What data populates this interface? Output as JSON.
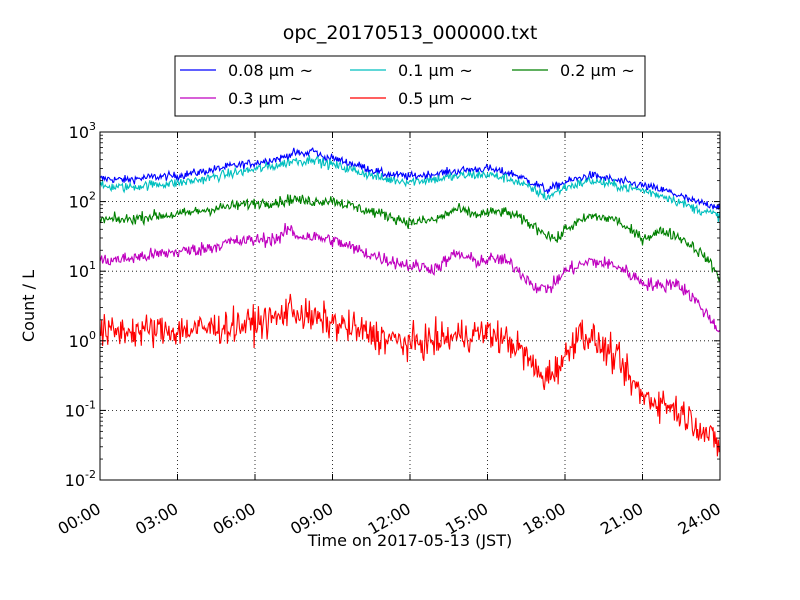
{
  "chart_data": {
    "type": "line",
    "title": "opc_20170513_000000.txt",
    "xlabel": "Time on 2017-05-13 (JST)",
    "ylabel": "Count / L",
    "x_unit": "hours",
    "xlim": [
      0,
      24
    ],
    "ylim": [
      0.01,
      1000
    ],
    "yscale": "log",
    "grid": true,
    "legend_position": "top",
    "x_ticks": [
      {
        "value": 0,
        "label": "00:00"
      },
      {
        "value": 3,
        "label": "03:00"
      },
      {
        "value": 6,
        "label": "06:00"
      },
      {
        "value": 9,
        "label": "09:00"
      },
      {
        "value": 12,
        "label": "12:00"
      },
      {
        "value": 15,
        "label": "15:00"
      },
      {
        "value": 18,
        "label": "18:00"
      },
      {
        "value": 21,
        "label": "21:00"
      },
      {
        "value": 24,
        "label": "24:00"
      }
    ],
    "y_ticks": [
      {
        "value": 0.01,
        "base": "10",
        "exp": "-2"
      },
      {
        "value": 0.1,
        "base": "10",
        "exp": "-1"
      },
      {
        "value": 1,
        "base": "10",
        "exp": "0"
      },
      {
        "value": 10,
        "base": "10",
        "exp": "1"
      },
      {
        "value": 100,
        "base": "10",
        "exp": "2"
      },
      {
        "value": 1000,
        "base": "10",
        "exp": "3"
      }
    ],
    "series": [
      {
        "name": "0.08 μm ~",
        "color": "#0000ff",
        "noise": 0.03,
        "x": [
          0,
          1,
          2,
          3,
          4,
          5,
          6,
          7,
          7.5,
          8,
          8.2,
          8.6,
          9,
          10,
          11,
          12,
          13,
          14,
          15,
          15.5,
          16,
          17,
          17.3,
          18,
          19,
          20,
          21,
          22,
          23,
          24
        ],
        "y": [
          215,
          205,
          225,
          235,
          270,
          320,
          360,
          420,
          500,
          480,
          560,
          440,
          420,
          330,
          250,
          230,
          250,
          280,
          300,
          270,
          250,
          170,
          145,
          190,
          240,
          200,
          170,
          140,
          100,
          85
        ]
      },
      {
        "name": "0.1 μm ~",
        "color": "#00bfbf",
        "noise": 0.035,
        "x": [
          0,
          1,
          2,
          3,
          4,
          5,
          6,
          7,
          7.5,
          8,
          8.2,
          8.6,
          9,
          10,
          11,
          12,
          13,
          14,
          15,
          15.5,
          16,
          17,
          17.3,
          18,
          19,
          20,
          21,
          22,
          23,
          24
        ],
        "y": [
          165,
          160,
          175,
          185,
          210,
          250,
          290,
          340,
          390,
          380,
          430,
          360,
          340,
          270,
          210,
          195,
          210,
          235,
          245,
          225,
          205,
          135,
          115,
          160,
          200,
          170,
          145,
          115,
          80,
          62
        ]
      },
      {
        "name": "0.2 μm ~",
        "color": "#008000",
        "noise": 0.04,
        "x": [
          0,
          1,
          2,
          3,
          4,
          5,
          6,
          7,
          7.5,
          8,
          9,
          10,
          11,
          12,
          13,
          13.8,
          14.5,
          15.5,
          16,
          17,
          17.7,
          18,
          19,
          20,
          20.5,
          21,
          21.8,
          22.5,
          23,
          23.5,
          24
        ],
        "y": [
          55,
          55,
          62,
          65,
          75,
          85,
          95,
          100,
          110,
          100,
          105,
          80,
          65,
          50,
          55,
          78,
          65,
          72,
          65,
          40,
          28,
          40,
          62,
          55,
          38,
          30,
          38,
          30,
          22,
          15,
          8
        ]
      },
      {
        "name": "0.3 μm ~",
        "color": "#bf00bf",
        "noise": 0.05,
        "x": [
          0,
          1,
          2,
          3,
          4,
          5,
          6,
          7,
          7.3,
          7.6,
          8,
          9,
          10,
          11,
          12,
          13,
          13.8,
          14.5,
          15.5,
          16,
          16.5,
          17,
          17.5,
          18,
          19,
          20,
          21,
          21.7,
          22.3,
          23,
          24
        ],
        "y": [
          14,
          15,
          17,
          19,
          21,
          26,
          28,
          30,
          42,
          32,
          32,
          28,
          20,
          15,
          12,
          11,
          18,
          14,
          15,
          12,
          8,
          5.5,
          6,
          10,
          14,
          12,
          7,
          6,
          7,
          4,
          1.4
        ]
      },
      {
        "name": "0.5 μm ~",
        "color": "#ff0000",
        "noise": 0.12,
        "x": [
          0,
          1,
          2,
          3,
          4,
          5,
          6,
          7,
          7.3,
          8,
          9,
          10,
          11,
          12,
          13,
          14,
          15,
          15.5,
          16,
          16.5,
          17,
          17.3,
          18,
          18.5,
          19,
          20,
          20.5,
          21,
          22,
          23,
          23.5,
          24
        ],
        "y": [
          1.3,
          1.4,
          1.4,
          1.4,
          1.5,
          1.6,
          1.8,
          2.2,
          3.0,
          2.2,
          1.8,
          1.4,
          1.1,
          0.9,
          1.0,
          1.2,
          1.3,
          1.1,
          0.9,
          0.6,
          0.32,
          0.3,
          0.55,
          1.4,
          1.1,
          0.55,
          0.28,
          0.16,
          0.12,
          0.07,
          0.045,
          0.03
        ]
      }
    ]
  }
}
